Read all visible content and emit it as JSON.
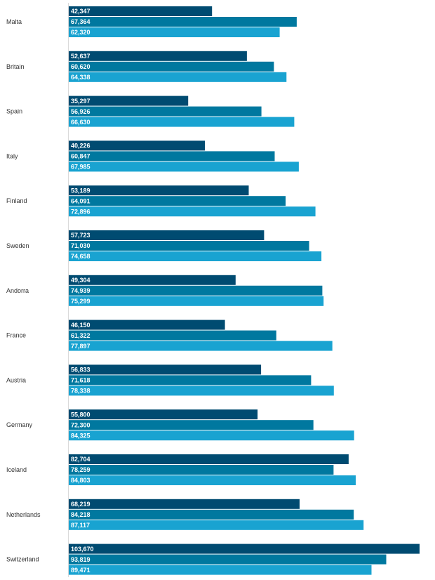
{
  "chart_data": {
    "type": "bar",
    "orientation": "horizontal",
    "categories": [
      "Malta",
      "Britain",
      "Spain",
      "Italy",
      "Finland",
      "Sweden",
      "Andorra",
      "France",
      "Austria",
      "Germany",
      "Iceland",
      "Netherlands",
      "Switzerland"
    ],
    "series": [
      {
        "color": "#004b71",
        "values": [
          42347,
          52637,
          35297,
          40226,
          53189,
          57723,
          49304,
          46150,
          56833,
          55800,
          82704,
          68219,
          103670
        ],
        "labels": [
          "42,347",
          "52,637",
          "35,297",
          "40,226",
          "53,189",
          "57,723",
          "49,304",
          "46,150",
          "56,833",
          "55,800",
          "82,704",
          "68,219",
          "103,670"
        ]
      },
      {
        "color": "#00789f",
        "values": [
          67364,
          60620,
          56926,
          60847,
          64091,
          71030,
          74939,
          61322,
          71618,
          72300,
          78259,
          84218,
          93819
        ],
        "labels": [
          "67,364",
          "60,620",
          "56,926",
          "60,847",
          "64,091",
          "71,030",
          "74,939",
          "61,322",
          "71,618",
          "72,300",
          "78,259",
          "84,218",
          "93,819"
        ]
      },
      {
        "color": "#19a3d1",
        "values": [
          62320,
          64338,
          66630,
          67985,
          72896,
          74658,
          75299,
          77897,
          78338,
          84325,
          84803,
          87117,
          89471
        ],
        "labels": [
          "62,320",
          "64,338",
          "66,630",
          "67,985",
          "72,896",
          "74,658",
          "75,299",
          "77,897",
          "78,338",
          "84,325",
          "84,803",
          "87,117",
          "89,471"
        ]
      }
    ],
    "xlim": [
      0,
      103670
    ],
    "grid": false,
    "legend": "none",
    "data_labels": "inside-left"
  }
}
